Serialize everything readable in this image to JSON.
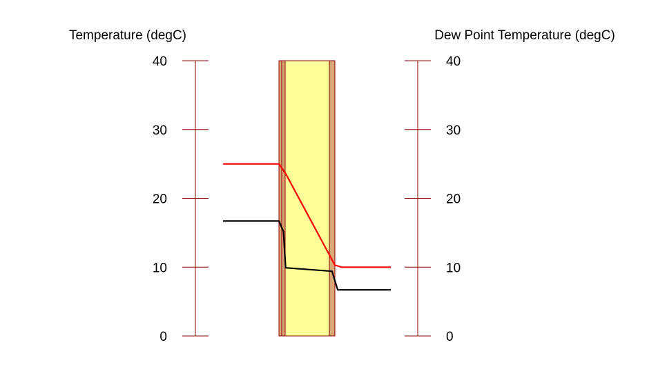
{
  "chart_data": {
    "type": "line",
    "left_axis": {
      "label": "Temperature (degC)",
      "ylim": [
        0,
        40
      ],
      "ticks": [
        0,
        10,
        20,
        30,
        40
      ],
      "tick_labels": [
        "0",
        "10",
        "20",
        "30",
        "40"
      ]
    },
    "right_axis": {
      "label": "Dew Point Temperature (degC)",
      "ylim": [
        0,
        40
      ],
      "ticks": [
        0,
        10,
        20,
        30,
        40
      ],
      "tick_labels": [
        "0",
        "10",
        "20",
        "30",
        "40"
      ]
    },
    "wall_layers": [
      {
        "color": "#D9A877"
      },
      {
        "color": "#FFFF99"
      },
      {
        "color": "#D9A877"
      }
    ],
    "series": [
      {
        "color": "#FF0000",
        "points": [
          [
            -1.0,
            25.0
          ],
          [
            0.0,
            25.0
          ],
          [
            0.12,
            23.6
          ],
          [
            1.0,
            10.3
          ],
          [
            1.12,
            10.0
          ],
          [
            2.0,
            10.0
          ]
        ]
      },
      {
        "color": "#000000",
        "points": [
          [
            -1.0,
            16.7
          ],
          [
            0.0,
            16.7
          ],
          [
            0.08,
            15.2
          ],
          [
            0.12,
            9.9
          ],
          [
            0.95,
            9.4
          ],
          [
            1.05,
            6.7
          ],
          [
            2.0,
            6.7
          ]
        ]
      }
    ],
    "grid": false,
    "axis_color": "#8B0000",
    "wall_outline_color": "#8B0000"
  }
}
